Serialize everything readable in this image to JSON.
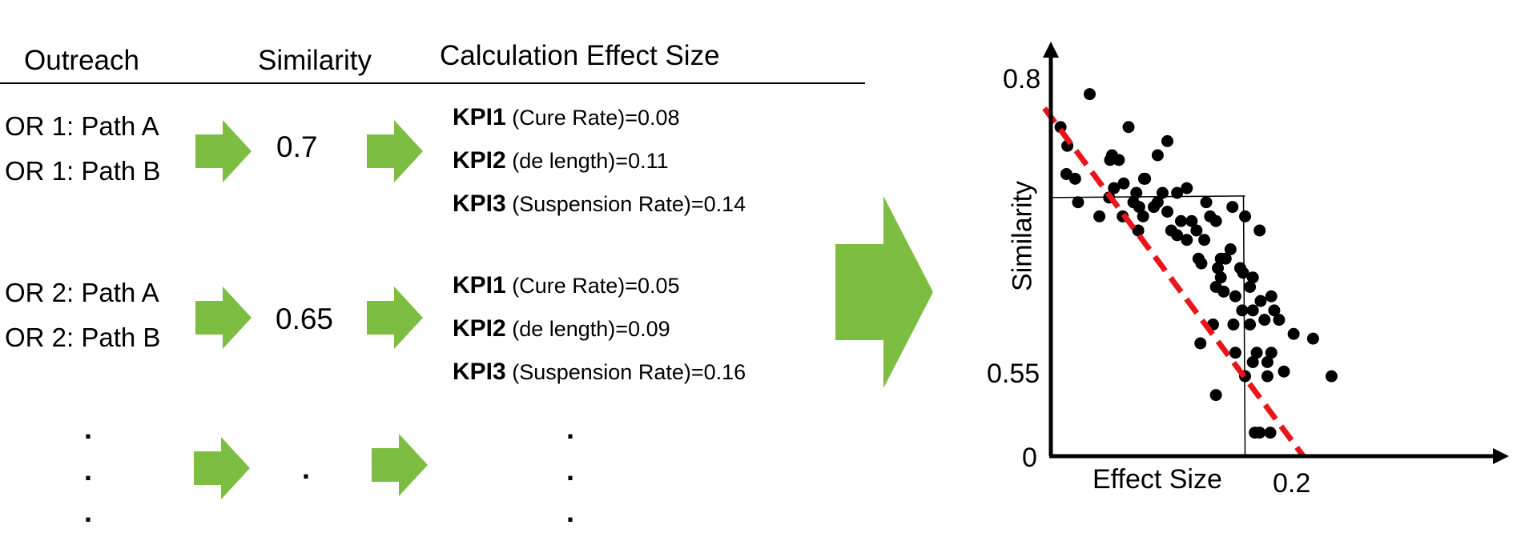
{
  "colors": {
    "arrow": "#7cbd42",
    "trend": "#e8161b",
    "point": "#000000"
  },
  "table": {
    "headers": [
      "Outreach",
      "Similarity",
      "Calculation Effect Size"
    ],
    "groups": [
      {
        "outreach": [
          "OR 1: Path A",
          "OR 1: Path B"
        ],
        "similarity": "0.7",
        "kpis": [
          {
            "name": "KPI1",
            "detail": "(Cure Rate)=0.08"
          },
          {
            "name": "KPI2",
            "detail": "(de length)=0.11"
          },
          {
            "name": "KPI3",
            "detail": "(Suspension Rate)=0.14"
          }
        ]
      },
      {
        "outreach": [
          "OR 2: Path A",
          "OR 2: Path B"
        ],
        "similarity": "0.65",
        "kpis": [
          {
            "name": "KPI1",
            "detail": "(Cure Rate)=0.05"
          },
          {
            "name": "KPI2",
            "detail": "(de length)=0.09"
          },
          {
            "name": "KPI3",
            "detail": "(Suspension Rate)=0.16"
          }
        ]
      }
    ],
    "ellipsis": {
      "outreach": [
        ".",
        ".",
        "."
      ],
      "similarity": ".",
      "kpis": [
        ".",
        ".",
        "."
      ]
    }
  },
  "chart_data": {
    "type": "scatter",
    "xlabel": "Effect Size",
    "ylabel": "Similarity",
    "y_ticks": [
      "0",
      "0.55",
      "0.8"
    ],
    "x_ticks": [
      "0.2"
    ],
    "xlim": [
      0,
      0.32
    ],
    "ylim": [
      0,
      0.8
    ],
    "reference_point": {
      "x": 0.2,
      "y": 0.55
    },
    "trend_line": {
      "x": [
        0.0,
        0.26
      ],
      "y": [
        0.74,
        0.0
      ]
    },
    "points": [
      [
        0.01,
        0.7
      ],
      [
        0.04,
        0.77
      ],
      [
        0.08,
        0.7
      ],
      [
        0.017,
        0.66
      ],
      [
        0.063,
        0.64
      ],
      [
        0.016,
        0.6
      ],
      [
        0.025,
        0.59
      ],
      [
        0.061,
        0.63
      ],
      [
        0.07,
        0.63
      ],
      [
        0.096,
        0.59
      ],
      [
        0.11,
        0.64
      ],
      [
        0.12,
        0.67
      ],
      [
        0.085,
        0.54
      ],
      [
        0.06,
        0.55
      ],
      [
        0.065,
        0.57
      ],
      [
        0.088,
        0.56
      ],
      [
        0.115,
        0.56
      ],
      [
        0.13,
        0.56
      ],
      [
        0.11,
        0.54
      ],
      [
        0.091,
        0.53
      ],
      [
        0.097,
        0.59
      ],
      [
        0.095,
        0.51
      ],
      [
        0.074,
        0.51
      ],
      [
        0.075,
        0.58
      ],
      [
        0.05,
        0.51
      ],
      [
        0.028,
        0.54
      ],
      [
        0.14,
        0.57
      ],
      [
        0.16,
        0.54
      ],
      [
        0.2,
        0.51
      ],
      [
        0.187,
        0.53
      ],
      [
        0.215,
        0.48
      ],
      [
        0.15,
        0.48
      ],
      [
        0.17,
        0.5
      ],
      [
        0.164,
        0.51
      ],
      [
        0.145,
        0.5
      ],
      [
        0.158,
        0.46
      ],
      [
        0.175,
        0.42
      ],
      [
        0.18,
        0.42
      ],
      [
        0.185,
        0.44
      ],
      [
        0.152,
        0.42
      ],
      [
        0.124,
        0.48
      ],
      [
        0.134,
        0.5
      ],
      [
        0.09,
        0.48
      ],
      [
        0.106,
        0.53
      ],
      [
        0.12,
        0.52
      ],
      [
        0.14,
        0.46
      ],
      [
        0.13,
        0.47
      ],
      [
        0.155,
        0.41
      ],
      [
        0.172,
        0.4
      ],
      [
        0.175,
        0.38
      ],
      [
        0.195,
        0.4
      ],
      [
        0.198,
        0.39
      ],
      [
        0.178,
        0.35
      ],
      [
        0.17,
        0.36
      ],
      [
        0.19,
        0.34
      ],
      [
        0.208,
        0.38
      ],
      [
        0.205,
        0.36
      ],
      [
        0.216,
        0.33
      ],
      [
        0.23,
        0.31
      ],
      [
        0.227,
        0.34
      ],
      [
        0.208,
        0.31
      ],
      [
        0.188,
        0.28
      ],
      [
        0.205,
        0.28
      ],
      [
        0.197,
        0.31
      ],
      [
        0.22,
        0.29
      ],
      [
        0.235,
        0.29
      ],
      [
        0.25,
        0.26
      ],
      [
        0.19,
        0.22
      ],
      [
        0.154,
        0.24
      ],
      [
        0.167,
        0.28
      ],
      [
        0.212,
        0.22
      ],
      [
        0.208,
        0.2
      ],
      [
        0.223,
        0.2
      ],
      [
        0.227,
        0.22
      ],
      [
        0.24,
        0.18
      ],
      [
        0.223,
        0.17
      ],
      [
        0.2,
        0.17
      ],
      [
        0.215,
        0.05
      ],
      [
        0.226,
        0.05
      ],
      [
        0.17,
        0.13
      ],
      [
        0.27,
        0.25
      ],
      [
        0.289,
        0.17
      ],
      [
        0.21,
        0.05
      ]
    ]
  }
}
